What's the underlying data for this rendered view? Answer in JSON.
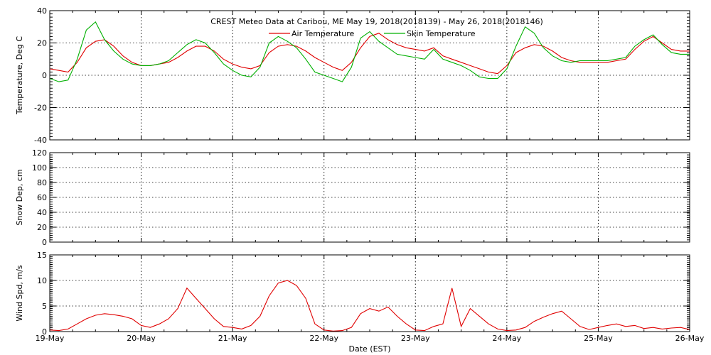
{
  "chart_data": [
    {
      "type": "line",
      "title": "CREST Meteo Data at Caribou, ME   May 19, 2018(2018139) - May 26, 2018(2018146)",
      "ylabel": "Temperature, Deg C",
      "ylim": [
        -40,
        40
      ],
      "yticks": [
        -40,
        -20,
        0,
        20,
        40
      ],
      "xlim": [
        0,
        7
      ],
      "grid": true,
      "legend": "top-center",
      "series": [
        {
          "name": "Air Temperature",
          "color": "#e00000",
          "x": [
            0.0,
            0.1,
            0.2,
            0.3,
            0.4,
            0.5,
            0.6,
            0.7,
            0.8,
            0.9,
            1.0,
            1.1,
            1.2,
            1.3,
            1.4,
            1.5,
            1.6,
            1.7,
            1.8,
            1.9,
            2.0,
            2.1,
            2.2,
            2.3,
            2.4,
            2.5,
            2.6,
            2.7,
            2.8,
            2.9,
            3.0,
            3.1,
            3.2,
            3.3,
            3.4,
            3.5,
            3.6,
            3.7,
            3.8,
            3.9,
            4.0,
            4.1,
            4.2,
            4.3,
            4.4,
            4.5,
            4.6,
            4.7,
            4.8,
            4.9,
            5.0,
            5.1,
            5.2,
            5.3,
            5.4,
            5.5,
            5.6,
            5.7,
            5.8,
            5.9,
            6.0,
            6.1,
            6.2,
            6.3,
            6.4,
            6.5,
            6.6,
            6.7,
            6.8,
            6.9,
            7.0
          ],
          "values": [
            4,
            3,
            2,
            8,
            17,
            21,
            22,
            18,
            12,
            8,
            6,
            6,
            7,
            8,
            11,
            15,
            18,
            18,
            15,
            10,
            7,
            5,
            4,
            6,
            14,
            18,
            19,
            18,
            15,
            11,
            8,
            5,
            3,
            8,
            17,
            24,
            26,
            22,
            19,
            17,
            16,
            15,
            17,
            12,
            10,
            8,
            6,
            4,
            2,
            1,
            6,
            14,
            17,
            19,
            18,
            15,
            11,
            9,
            8,
            8,
            8,
            8,
            9,
            10,
            16,
            21,
            24,
            20,
            16,
            15,
            15
          ]
        },
        {
          "name": "Skin Temperature",
          "color": "#00b000",
          "x": [
            0.0,
            0.1,
            0.2,
            0.3,
            0.4,
            0.5,
            0.6,
            0.7,
            0.8,
            0.9,
            1.0,
            1.1,
            1.2,
            1.3,
            1.4,
            1.5,
            1.6,
            1.7,
            1.8,
            1.9,
            2.0,
            2.1,
            2.2,
            2.3,
            2.4,
            2.5,
            2.6,
            2.7,
            2.8,
            2.9,
            3.0,
            3.1,
            3.2,
            3.3,
            3.4,
            3.5,
            3.6,
            3.7,
            3.8,
            3.9,
            4.0,
            4.1,
            4.2,
            4.3,
            4.4,
            4.5,
            4.6,
            4.7,
            4.8,
            4.9,
            5.0,
            5.1,
            5.2,
            5.3,
            5.4,
            5.5,
            5.6,
            5.7,
            5.8,
            5.9,
            6.0,
            6.1,
            6.2,
            6.3,
            6.4,
            6.5,
            6.6,
            6.7,
            6.8,
            6.9,
            7.0
          ],
          "values": [
            -2,
            -4,
            -3,
            10,
            28,
            33,
            22,
            15,
            10,
            7,
            6,
            6,
            7,
            9,
            14,
            19,
            22,
            20,
            14,
            7,
            3,
            0,
            -1,
            5,
            20,
            24,
            21,
            17,
            10,
            2,
            0,
            -2,
            -4,
            5,
            23,
            27,
            21,
            17,
            13,
            12,
            11,
            10,
            16,
            10,
            8,
            6,
            3,
            -1,
            -2,
            -2,
            4,
            18,
            30,
            26,
            17,
            12,
            9,
            8,
            9,
            9,
            9,
            9,
            10,
            11,
            18,
            22,
            25,
            19,
            14,
            13,
            13
          ]
        }
      ]
    },
    {
      "type": "line",
      "ylabel": "Snow Dep, cm",
      "ylim": [
        0,
        120
      ],
      "yticks": [
        0,
        20,
        40,
        60,
        80,
        100,
        120
      ],
      "xlim": [
        0,
        7
      ],
      "grid": true,
      "series": []
    },
    {
      "type": "line",
      "ylabel": "Wind Spd, m/s",
      "ylim": [
        0,
        15
      ],
      "yticks": [
        0,
        5,
        10,
        15
      ],
      "xlim": [
        0,
        7
      ],
      "xlabel": "Date (EST)",
      "grid": true,
      "x_tick_labels": [
        "19-May",
        "20-May",
        "21-May",
        "22-May",
        "23-May",
        "24-May",
        "25-May",
        "26-May"
      ],
      "series": [
        {
          "name": "Wind Speed",
          "color": "#e00000",
          "x": [
            0.0,
            0.1,
            0.2,
            0.3,
            0.4,
            0.5,
            0.6,
            0.7,
            0.8,
            0.9,
            1.0,
            1.1,
            1.2,
            1.3,
            1.4,
            1.5,
            1.6,
            1.7,
            1.8,
            1.9,
            2.0,
            2.1,
            2.2,
            2.3,
            2.4,
            2.5,
            2.6,
            2.7,
            2.8,
            2.9,
            3.0,
            3.1,
            3.2,
            3.3,
            3.4,
            3.5,
            3.6,
            3.7,
            3.8,
            3.9,
            4.0,
            4.1,
            4.2,
            4.3,
            4.4,
            4.5,
            4.6,
            4.7,
            4.8,
            4.9,
            5.0,
            5.1,
            5.2,
            5.3,
            5.4,
            5.5,
            5.6,
            5.7,
            5.8,
            5.9,
            6.0,
            6.1,
            6.2,
            6.3,
            6.4,
            6.5,
            6.6,
            6.7,
            6.8,
            6.9,
            7.0
          ],
          "values": [
            0.3,
            0.2,
            0.5,
            1.5,
            2.5,
            3.2,
            3.5,
            3.3,
            3.0,
            2.5,
            1.2,
            0.8,
            1.5,
            2.5,
            4.5,
            8.5,
            6.5,
            4.5,
            2.5,
            1.0,
            0.8,
            0.5,
            1.2,
            3.0,
            7.0,
            9.5,
            10.0,
            9.0,
            6.5,
            1.5,
            0.3,
            0.1,
            0.2,
            0.8,
            3.5,
            4.5,
            4.0,
            4.8,
            3.0,
            1.5,
            0.3,
            0.2,
            1.0,
            1.5,
            8.5,
            1.0,
            4.5,
            3.0,
            1.5,
            0.5,
            0.2,
            0.3,
            0.8,
            2.0,
            2.8,
            3.5,
            4.0,
            2.5,
            1.0,
            0.4,
            0.8,
            1.2,
            1.5,
            1.0,
            1.2,
            0.6,
            0.8,
            0.5,
            0.7,
            0.8,
            0.4
          ]
        }
      ]
    }
  ]
}
